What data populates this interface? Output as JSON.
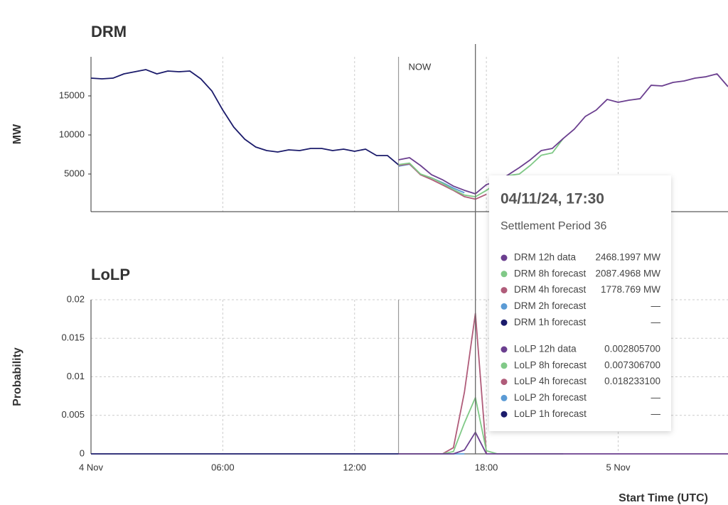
{
  "chart_data": [
    {
      "type": "line",
      "title": "DRM",
      "ylabel": "MW",
      "x": [
        0,
        0.5,
        1,
        1.5,
        2,
        2.5,
        3,
        3.5,
        4,
        4.5,
        5,
        5.5,
        6,
        6.5,
        7,
        7.5,
        8,
        8.5,
        9,
        9.5,
        10,
        10.5,
        11,
        11.5,
        12,
        12.5,
        13,
        13.5,
        14,
        14.5,
        15,
        15.5,
        16,
        16.5,
        17,
        17.5,
        18,
        18.5,
        19,
        19.5,
        20,
        20.5,
        21,
        21.5,
        22,
        22.5,
        23,
        23.5,
        24,
        24.5,
        25,
        25.5,
        26,
        26.5,
        27,
        27.5,
        28,
        28.5,
        29
      ],
      "xlim": [
        0,
        29
      ],
      "xticks": [
        0,
        6,
        12,
        18,
        24
      ],
      "ylim": [
        180,
        20000
      ],
      "yticks": [
        5000,
        10000,
        15000
      ],
      "xgrid": true,
      "ygrid": false,
      "annotations": [
        {
          "x": 14,
          "label": "NOW"
        }
      ],
      "series": [
        {
          "name": "DRM 12h data",
          "color": "#6b3f8f",
          "values": [
            null,
            null,
            null,
            null,
            null,
            null,
            null,
            null,
            null,
            null,
            null,
            null,
            null,
            null,
            null,
            null,
            null,
            null,
            null,
            null,
            null,
            null,
            null,
            null,
            null,
            null,
            null,
            null,
            6820,
            7090,
            6090,
            4910,
            4270,
            3450,
            2910,
            2468.1997,
            3640,
            4090,
            4910,
            5820,
            6820,
            8000,
            8270,
            9550,
            10730,
            12360,
            13180,
            14550,
            14180,
            14450,
            14640,
            16360,
            16270,
            16730,
            16910,
            17270,
            17450,
            17820,
            16180
          ]
        },
        {
          "name": "DRM 8h forecast",
          "color": "#80c987",
          "values": [
            null,
            null,
            null,
            null,
            null,
            null,
            null,
            null,
            null,
            null,
            null,
            null,
            null,
            null,
            null,
            null,
            null,
            null,
            null,
            null,
            null,
            null,
            null,
            null,
            null,
            null,
            null,
            null,
            6200,
            6400,
            5000,
            4500,
            3800,
            3000,
            2300,
            2087.4968,
            2900,
            3900,
            4800,
            5000,
            6100,
            7400,
            7700,
            9550,
            null,
            null,
            null,
            null,
            null,
            null,
            null,
            null,
            null,
            null,
            null,
            null,
            null,
            null,
            null
          ]
        },
        {
          "name": "DRM 4h forecast",
          "color": "#b05c7a",
          "values": [
            null,
            null,
            null,
            null,
            null,
            null,
            null,
            null,
            null,
            null,
            null,
            null,
            null,
            null,
            null,
            null,
            null,
            null,
            null,
            null,
            null,
            null,
            null,
            null,
            null,
            null,
            null,
            null,
            6100,
            6300,
            4900,
            4300,
            3600,
            2900,
            2100,
            1778.769,
            2400,
            null,
            null,
            null,
            null,
            null,
            null,
            null,
            null,
            null,
            null,
            null,
            null,
            null,
            null,
            null,
            null,
            null,
            null,
            null,
            null,
            null,
            null
          ]
        },
        {
          "name": "DRM 2h forecast",
          "color": "#5b9bd5",
          "values": [
            null,
            null,
            null,
            null,
            null,
            null,
            null,
            null,
            null,
            null,
            null,
            null,
            null,
            null,
            null,
            null,
            null,
            null,
            null,
            null,
            null,
            null,
            null,
            null,
            null,
            null,
            null,
            null,
            6000,
            6250,
            4950,
            4500,
            3900,
            3200,
            2600,
            null,
            null,
            null,
            null,
            null,
            null,
            null,
            null,
            null,
            null,
            null,
            null,
            null,
            null,
            null,
            null,
            null,
            null,
            null,
            null,
            null,
            null,
            null,
            null
          ]
        },
        {
          "name": "DRM 1h forecast",
          "color": "#1b1b6b",
          "values": [
            17270,
            17180,
            17270,
            17820,
            18090,
            18360,
            17820,
            18180,
            18090,
            18180,
            17180,
            15640,
            13180,
            11000,
            9450,
            8450,
            8000,
            7820,
            8090,
            8000,
            8270,
            8270,
            8000,
            8180,
            7910,
            8180,
            7360,
            7360,
            6180,
            null,
            null,
            null,
            null,
            null,
            null,
            null,
            null,
            null,
            null,
            null,
            null,
            null,
            null,
            null,
            null,
            null,
            null,
            null,
            null,
            null,
            null,
            null,
            null,
            null,
            null,
            null,
            null,
            null,
            null
          ]
        }
      ]
    },
    {
      "type": "line",
      "title": "LoLP",
      "ylabel": "Probability",
      "xlabel": "Start Time (UTC)",
      "x": [
        0,
        0.5,
        1,
        1.5,
        2,
        2.5,
        3,
        3.5,
        4,
        4.5,
        5,
        5.5,
        6,
        6.5,
        7,
        7.5,
        8,
        8.5,
        9,
        9.5,
        10,
        10.5,
        11,
        11.5,
        12,
        12.5,
        13,
        13.5,
        14,
        14.5,
        15,
        15.5,
        16,
        16.5,
        17,
        17.5,
        18,
        18.5,
        19,
        19.5,
        20,
        20.5,
        21,
        21.5,
        22,
        22.5,
        23,
        23.5,
        24,
        24.5,
        25,
        25.5,
        26,
        26.5,
        27,
        27.5,
        28,
        28.5,
        29
      ],
      "xlim": [
        0,
        29
      ],
      "xticks": [
        {
          "value": 0,
          "label": "4 Nov"
        },
        {
          "value": 6,
          "label": "06:00"
        },
        {
          "value": 12,
          "label": "12:00"
        },
        {
          "value": 18,
          "label": "18:00"
        },
        {
          "value": 24,
          "label": "5 Nov"
        }
      ],
      "ylim": [
        0,
        0.02
      ],
      "yticks": [
        0,
        0.005,
        0.01,
        0.015,
        0.02
      ],
      "xgrid": true,
      "ygrid": true,
      "annotations": [
        {
          "x": 14
        }
      ],
      "series": [
        {
          "name": "LoLP 12h data",
          "color": "#6b3f8f",
          "values": [
            null,
            null,
            null,
            null,
            null,
            null,
            null,
            null,
            null,
            null,
            null,
            null,
            null,
            null,
            null,
            null,
            null,
            null,
            null,
            null,
            null,
            null,
            null,
            null,
            null,
            null,
            null,
            null,
            0,
            0,
            0,
            0,
            0,
            0,
            0.0005,
            0.0028057,
            0,
            0,
            0,
            0,
            0,
            0,
            0,
            0,
            0,
            0,
            0,
            0,
            0,
            0,
            0,
            0,
            0,
            0,
            0,
            0,
            0,
            0,
            0
          ]
        },
        {
          "name": "LoLP 8h forecast",
          "color": "#80c987",
          "values": [
            null,
            null,
            null,
            null,
            null,
            null,
            null,
            null,
            null,
            null,
            null,
            null,
            null,
            null,
            null,
            null,
            null,
            null,
            null,
            null,
            null,
            null,
            null,
            null,
            null,
            null,
            null,
            null,
            0,
            0,
            0,
            0,
            0,
            0.0003,
            0.004,
            0.0073067,
            0.0004,
            0,
            0,
            0,
            0,
            0,
            0,
            0,
            null,
            null,
            null,
            null,
            null,
            null,
            null,
            null,
            null,
            null,
            null,
            null,
            null,
            null,
            null
          ]
        },
        {
          "name": "LoLP 4h forecast",
          "color": "#b05c7a",
          "values": [
            null,
            null,
            null,
            null,
            null,
            null,
            null,
            null,
            null,
            null,
            null,
            null,
            null,
            null,
            null,
            null,
            null,
            null,
            null,
            null,
            null,
            null,
            null,
            null,
            null,
            null,
            null,
            null,
            0,
            0,
            0,
            0,
            0,
            0.0008,
            0.008,
            0.0182331,
            0,
            null,
            null,
            null,
            null,
            null,
            null,
            null,
            null,
            null,
            null,
            null,
            null,
            null,
            null,
            null,
            null,
            null,
            null,
            null,
            null,
            null,
            null
          ]
        },
        {
          "name": "LoLP 2h forecast",
          "color": "#5b9bd5",
          "values": [
            null,
            null,
            null,
            null,
            null,
            null,
            null,
            null,
            null,
            null,
            null,
            null,
            null,
            null,
            null,
            null,
            null,
            null,
            null,
            null,
            null,
            null,
            null,
            null,
            null,
            null,
            null,
            null,
            0,
            0,
            0,
            0,
            0,
            0,
            0,
            null,
            null,
            null,
            null,
            null,
            null,
            null,
            null,
            null,
            null,
            null,
            null,
            null,
            null,
            null,
            null,
            null,
            null,
            null,
            null,
            null,
            null,
            null,
            null
          ]
        },
        {
          "name": "LoLP 1h forecast",
          "color": "#1b1b6b",
          "values": [
            0,
            0,
            0,
            0,
            0,
            0,
            0,
            0,
            0,
            0,
            0,
            0,
            0,
            0,
            0,
            0,
            0,
            0,
            0,
            0,
            0,
            0,
            0,
            0,
            0,
            0,
            0,
            0,
            0,
            null,
            null,
            null,
            null,
            null,
            null,
            null,
            null,
            null,
            null,
            null,
            null,
            null,
            null,
            null,
            null,
            null,
            null,
            null,
            null,
            null,
            null,
            null,
            null,
            null,
            null,
            null,
            null,
            null,
            null
          ]
        }
      ]
    }
  ],
  "tooltip": {
    "x": 17.5,
    "title": "04/11/24, 17:30",
    "subtitle": "Settlement Period 36",
    "drm_values": [
      "2468.1997 MW",
      "2087.4968 MW",
      "1778.769 MW",
      "—",
      "—"
    ],
    "lolp_values": [
      "0.002805700",
      "0.007306700",
      "0.018233100",
      "—",
      "—"
    ]
  }
}
